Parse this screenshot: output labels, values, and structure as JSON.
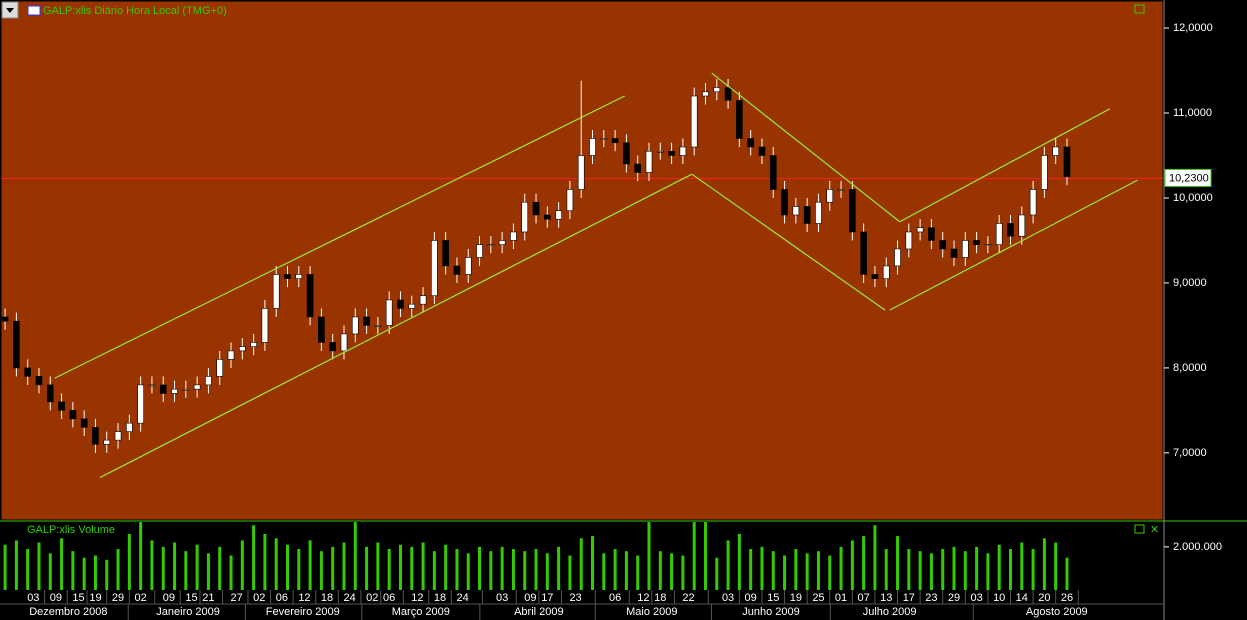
{
  "chart_data": [
    {
      "type": "candlestick",
      "title": "GALP:xlis Diário Hora Local (TMG+0)",
      "x": [
        0,
        2,
        4,
        6,
        8,
        10,
        12,
        14,
        16,
        18,
        20,
        22,
        24,
        26,
        28,
        30,
        32,
        34,
        36,
        38,
        40,
        42,
        44,
        46,
        48,
        50,
        52,
        54,
        56,
        58,
        60,
        62,
        64,
        66,
        68,
        70,
        72,
        74,
        76,
        78,
        80,
        82,
        84,
        86,
        88,
        90,
        92,
        94,
        96,
        98,
        100,
        102,
        104,
        106,
        108,
        110,
        112,
        114,
        116,
        118,
        120,
        122,
        124,
        126,
        128,
        130,
        132,
        134,
        136,
        138,
        140,
        142,
        144,
        146,
        148,
        150,
        152,
        154,
        156,
        158,
        160,
        162,
        164,
        166,
        168,
        170,
        172,
        174,
        176,
        178,
        180,
        182,
        184,
        186,
        188
      ],
      "open": [
        8.6,
        8.55,
        8.0,
        7.9,
        7.8,
        7.6,
        7.5,
        7.4,
        7.3,
        7.1,
        7.15,
        7.25,
        7.35,
        7.8,
        7.8,
        7.7,
        7.75,
        7.75,
        7.8,
        7.9,
        8.1,
        8.2,
        8.25,
        8.3,
        8.7,
        9.1,
        9.05,
        9.1,
        8.6,
        8.3,
        8.2,
        8.4,
        8.6,
        8.5,
        8.5,
        8.8,
        8.7,
        8.75,
        8.85,
        9.5,
        9.2,
        9.1,
        9.3,
        9.45,
        9.45,
        9.5,
        9.6,
        9.95,
        9.8,
        9.75,
        9.85,
        10.1,
        10.5,
        10.7,
        10.7,
        10.65,
        10.4,
        10.3,
        10.55,
        10.55,
        10.5,
        10.6,
        11.2,
        11.25,
        11.3,
        11.15,
        10.7,
        10.6,
        10.5,
        10.1,
        9.8,
        9.9,
        9.7,
        9.95,
        10.1,
        10.1,
        9.6,
        9.1,
        9.05,
        9.2,
        9.4,
        9.6,
        9.65,
        9.5,
        9.4,
        9.3,
        9.5,
        9.45,
        9.45,
        9.7,
        9.55,
        9.8,
        10.1,
        10.5,
        10.6
      ],
      "high": [
        8.7,
        8.65,
        8.1,
        8.0,
        7.9,
        7.7,
        7.6,
        7.5,
        7.4,
        7.25,
        7.35,
        7.45,
        7.9,
        7.9,
        7.9,
        7.85,
        7.85,
        7.9,
        8.0,
        8.2,
        8.3,
        8.35,
        8.4,
        8.8,
        9.2,
        9.2,
        9.2,
        9.2,
        8.7,
        8.4,
        8.5,
        8.7,
        8.7,
        8.6,
        8.9,
        8.9,
        8.85,
        8.95,
        9.6,
        9.6,
        9.3,
        9.4,
        9.55,
        9.55,
        9.6,
        9.7,
        10.05,
        10.05,
        9.9,
        9.95,
        10.2,
        11.38,
        10.8,
        10.8,
        10.8,
        10.75,
        10.5,
        10.65,
        10.65,
        10.65,
        10.7,
        11.3,
        11.35,
        11.4,
        11.4,
        11.25,
        10.8,
        10.7,
        10.6,
        10.2,
        10.0,
        10.0,
        10.05,
        10.2,
        10.2,
        10.2,
        9.7,
        9.2,
        9.3,
        9.5,
        9.7,
        9.75,
        9.75,
        9.6,
        9.5,
        9.6,
        9.6,
        9.55,
        9.8,
        9.8,
        9.9,
        10.2,
        10.6,
        10.7,
        10.7
      ],
      "low": [
        8.45,
        7.9,
        7.8,
        7.7,
        7.5,
        7.4,
        7.3,
        7.2,
        7.0,
        7.0,
        7.05,
        7.15,
        7.25,
        7.7,
        7.6,
        7.6,
        7.65,
        7.65,
        7.7,
        7.8,
        8.0,
        8.1,
        8.15,
        8.2,
        8.6,
        8.95,
        8.95,
        8.5,
        8.2,
        8.1,
        8.1,
        8.3,
        8.4,
        8.4,
        8.4,
        8.6,
        8.6,
        8.65,
        8.75,
        9.1,
        9.0,
        9.0,
        9.2,
        9.35,
        9.35,
        9.4,
        9.5,
        9.7,
        9.65,
        9.65,
        9.75,
        10.0,
        10.4,
        10.6,
        10.55,
        10.3,
        10.2,
        10.2,
        10.45,
        10.4,
        10.4,
        10.5,
        11.1,
        11.15,
        11.05,
        10.6,
        10.5,
        10.4,
        10.0,
        9.7,
        9.7,
        9.6,
        9.6,
        9.85,
        10.0,
        9.5,
        9.0,
        8.95,
        8.95,
        9.1,
        9.3,
        9.5,
        9.4,
        9.3,
        9.2,
        9.2,
        9.35,
        9.35,
        9.35,
        9.45,
        9.45,
        9.7,
        10.0,
        10.4,
        10.15
      ],
      "close": [
        8.55,
        8.0,
        7.9,
        7.8,
        7.6,
        7.5,
        7.4,
        7.3,
        7.1,
        7.15,
        7.25,
        7.35,
        7.8,
        7.8,
        7.7,
        7.75,
        7.75,
        7.8,
        7.9,
        8.1,
        8.2,
        8.25,
        8.3,
        8.7,
        9.1,
        9.05,
        9.1,
        8.6,
        8.3,
        8.2,
        8.4,
        8.6,
        8.5,
        8.5,
        8.8,
        8.7,
        8.75,
        8.85,
        9.5,
        9.2,
        9.1,
        9.3,
        9.45,
        9.45,
        9.5,
        9.6,
        9.95,
        9.8,
        9.75,
        9.85,
        10.1,
        10.5,
        10.7,
        10.7,
        10.65,
        10.4,
        10.3,
        10.55,
        10.55,
        10.5,
        10.6,
        11.2,
        11.25,
        11.3,
        11.15,
        10.7,
        10.6,
        10.5,
        10.1,
        9.8,
        9.9,
        9.7,
        9.95,
        10.1,
        10.1,
        9.6,
        9.1,
        9.05,
        9.2,
        9.4,
        9.6,
        9.65,
        9.5,
        9.4,
        9.3,
        9.5,
        9.45,
        9.45,
        9.7,
        9.55,
        9.8,
        10.1,
        10.5,
        10.6,
        10.25
      ],
      "xlim": [
        -0.9,
        205
      ],
      "ylim": [
        6.21,
        12.33
      ],
      "yticks": [
        {
          "value": 7,
          "label": "7,0000"
        },
        {
          "value": 8,
          "label": "8,0000"
        },
        {
          "value": 9,
          "label": "9,0000"
        },
        {
          "value": 10,
          "label": "10,0000"
        },
        {
          "value": 11,
          "label": "11,0000"
        },
        {
          "value": 12,
          "label": "12,0000"
        }
      ],
      "last_price": {
        "value": 10.23,
        "label": "10,2300"
      },
      "trendlines": [
        {
          "x": [
            8.8,
            109.7
          ],
          "y": [
            7.88,
            11.2
          ]
        },
        {
          "x": [
            16.8,
            121.6
          ],
          "y": [
            6.71,
            10.28
          ]
        },
        {
          "x": [
            125.1,
            158.4
          ],
          "y": [
            11.47,
            9.72
          ]
        },
        {
          "x": [
            121.6,
            155.8
          ],
          "y": [
            10.28,
            8.68
          ]
        },
        {
          "x": [
            158.4,
            195.6
          ],
          "y": [
            9.72,
            11.05
          ]
        },
        {
          "x": [
            156.6,
            200.5
          ],
          "y": [
            8.68,
            10.21
          ]
        }
      ]
    },
    {
      "type": "bar",
      "title": "GALP:xlis Volume",
      "values": [
        2100000,
        2300000,
        1900000,
        2200000,
        1700000,
        2400000,
        1800000,
        1500000,
        1600000,
        1400000,
        1900000,
        2600000,
        3150000,
        2300000,
        2000000,
        2200000,
        1800000,
        2100000,
        1700000,
        2000000,
        1600000,
        2300000,
        3000000,
        2600000,
        2400000,
        2100000,
        1900000,
        2300000,
        1800000,
        2000000,
        2200000,
        3150000,
        2000000,
        2200000,
        1900000,
        2100000,
        2000000,
        2200000,
        1800000,
        2100000,
        1900000,
        1700000,
        2000000,
        1800000,
        2000000,
        1900000,
        1800000,
        1900000,
        1700000,
        2000000,
        1600000,
        2400000,
        2500000,
        1700000,
        1900000,
        1800000,
        1600000,
        3150000,
        1800000,
        1700000,
        1600000,
        3150000,
        3150000,
        1500000,
        2300000,
        2600000,
        1900000,
        2000000,
        1800000,
        1600000,
        1900000,
        1700000,
        1800000,
        1600000,
        2000000,
        2300000,
        2500000,
        3000000,
        1900000,
        2500000,
        1900000,
        1800000,
        1700000,
        1900000,
        2000000,
        1800000,
        2000000,
        1700000,
        2100000,
        1900000,
        2200000,
        1900000,
        2400000,
        2200000,
        1500000
      ],
      "ylim": [
        0,
        3200000
      ],
      "yticks": [
        {
          "value": 2000000,
          "label": "2.000.000"
        }
      ],
      "xticks": [
        {
          "value": 5,
          "label": "03"
        },
        {
          "value": 9,
          "label": "09"
        },
        {
          "value": 13,
          "label": "15"
        },
        {
          "value": 16,
          "label": "19"
        },
        {
          "value": 20,
          "label": "29"
        },
        {
          "value": 24,
          "label": "02"
        },
        {
          "value": 29,
          "label": "09"
        },
        {
          "value": 33,
          "label": "15"
        },
        {
          "value": 36,
          "label": "21"
        },
        {
          "value": 41,
          "label": "27"
        },
        {
          "value": 45,
          "label": "02"
        },
        {
          "value": 49,
          "label": "06"
        },
        {
          "value": 53,
          "label": "12"
        },
        {
          "value": 57,
          "label": "18"
        },
        {
          "value": 61,
          "label": "24"
        },
        {
          "value": 65,
          "label": "02"
        },
        {
          "value": 68,
          "label": "06"
        },
        {
          "value": 73,
          "label": "12"
        },
        {
          "value": 77,
          "label": "18"
        },
        {
          "value": 81,
          "label": "24"
        },
        {
          "value": 88,
          "label": "03"
        },
        {
          "value": 93,
          "label": "09"
        },
        {
          "value": 96,
          "label": "17"
        },
        {
          "value": 101,
          "label": "23"
        },
        {
          "value": 108,
          "label": "06"
        },
        {
          "value": 113,
          "label": "12"
        },
        {
          "value": 116,
          "label": "18"
        },
        {
          "value": 121,
          "label": "22"
        },
        {
          "value": 128,
          "label": "03"
        },
        {
          "value": 132,
          "label": "09"
        },
        {
          "value": 136,
          "label": "15"
        },
        {
          "value": 140,
          "label": "19"
        },
        {
          "value": 144,
          "label": "25"
        },
        {
          "value": 148,
          "label": "01"
        },
        {
          "value": 152,
          "label": "07"
        },
        {
          "value": 156,
          "label": "13"
        },
        {
          "value": 160,
          "label": "17"
        },
        {
          "value": 164,
          "label": "23"
        },
        {
          "value": 168,
          "label": "29"
        },
        {
          "value": 172,
          "label": "03"
        },
        {
          "value": 176,
          "label": "10"
        },
        {
          "value": 180,
          "label": "14"
        },
        {
          "value": 184,
          "label": "20"
        },
        {
          "value": 188,
          "label": "26"
        }
      ],
      "month_ticks": [
        {
          "value": 11.2,
          "label": "Dezembro 2008"
        },
        {
          "value": 32.4,
          "label": "Janeiro 2009"
        },
        {
          "value": 52.7,
          "label": "Fevereiro 2009"
        },
        {
          "value": 73.6,
          "label": "Março 2009"
        },
        {
          "value": 94.5,
          "label": "Abril 2009"
        },
        {
          "value": 114.5,
          "label": "Maio 2009"
        },
        {
          "value": 135.6,
          "label": "Junho 2009"
        },
        {
          "value": 156.6,
          "label": "Julho 2009"
        },
        {
          "value": 186.2,
          "label": "Agosto 2009"
        }
      ]
    }
  ]
}
